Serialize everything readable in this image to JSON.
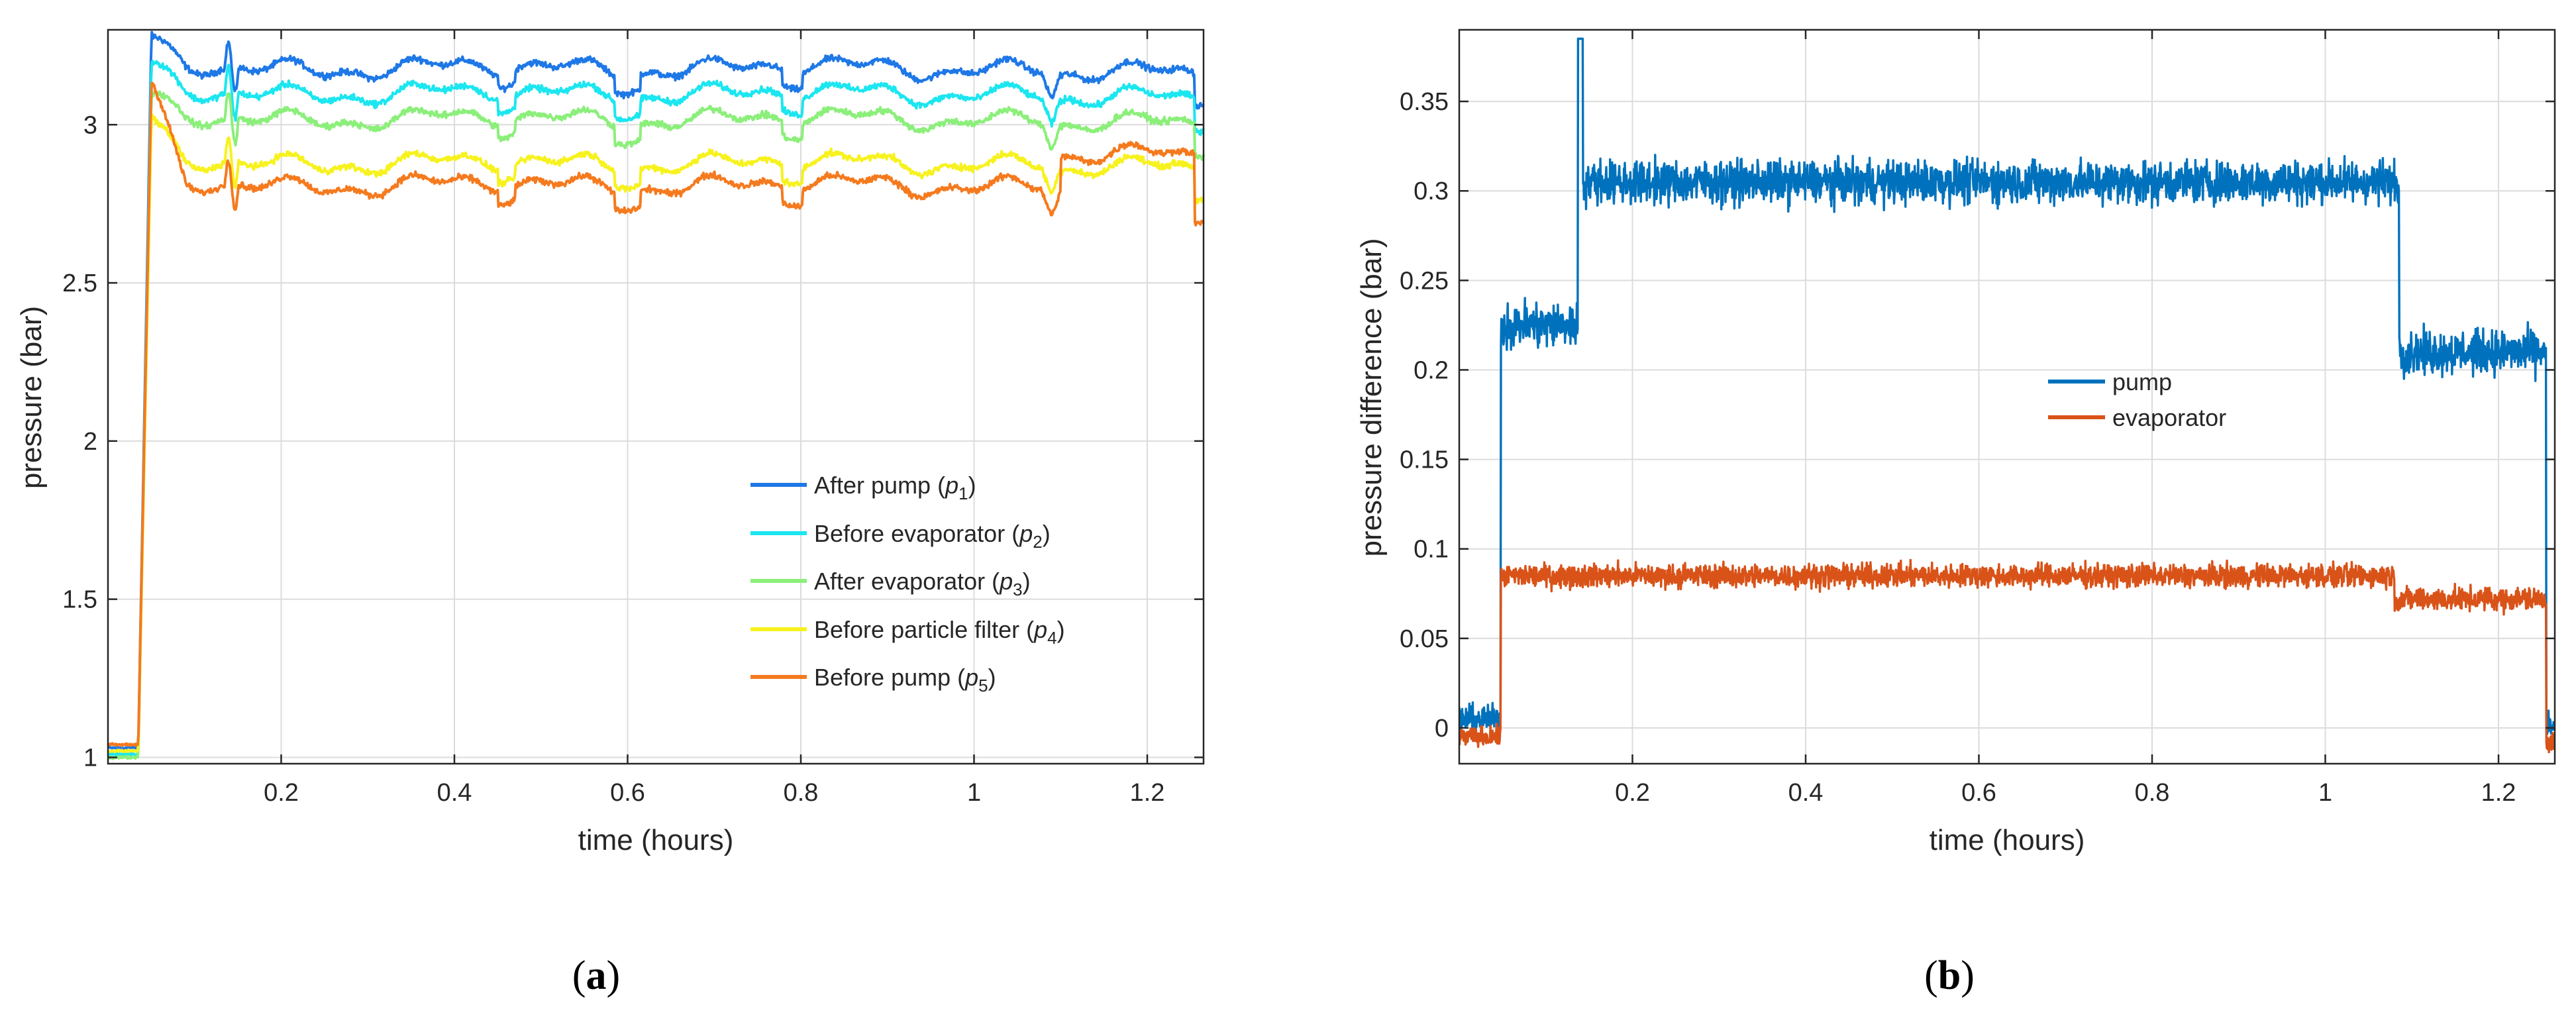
{
  "figure_labels": {
    "a_open": "(",
    "a_letter": "a",
    "a_close": ")",
    "b_open": "(",
    "b_letter": "b",
    "b_close": ")"
  },
  "chart_data": [
    {
      "id": "a",
      "type": "line",
      "title": "",
      "xlabel": "time (hours)",
      "ylabel": "pressure (bar)",
      "xlim": [
        0,
        1.265
      ],
      "ylim": [
        0.98,
        3.3
      ],
      "xticks": [
        0.2,
        0.4,
        0.6,
        0.8,
        1,
        1.2
      ],
      "xtick_labels": [
        "0.2",
        "0.4",
        "0.6",
        "0.8",
        "1",
        "1.2"
      ],
      "yticks": [
        1,
        1.5,
        2,
        2.5,
        3
      ],
      "ytick_labels": [
        "1",
        "1.5",
        "2",
        "2.5",
        "3"
      ],
      "grid": true,
      "legend_position": "lower-right",
      "series": [
        {
          "name": "After pump",
          "sym": "p",
          "sub": "1",
          "color": "#1E78E6",
          "before": 1.03,
          "steady": 3.18,
          "ramp_peak": 3.26,
          "noise": 0.015
        },
        {
          "name": "Before evaporator",
          "sym": "p",
          "sub": "2",
          "color": "#1CE6F0",
          "before": 1.01,
          "steady": 3.1,
          "ramp_peak": 3.18,
          "noise": 0.015
        },
        {
          "name": "After evaporator",
          "sym": "p",
          "sub": "3",
          "color": "#8BEF7A",
          "before": 1.0,
          "steady": 3.02,
          "ramp_peak": 3.08,
          "noise": 0.015
        },
        {
          "name": "Before particle filter",
          "sym": "p",
          "sub": "4",
          "color": "#F7F21E",
          "before": 1.02,
          "steady": 2.88,
          "ramp_peak": 3.0,
          "noise": 0.015
        },
        {
          "name": "Before pump",
          "sym": "p",
          "sub": "5",
          "color": "#F57A1E",
          "before": 1.04,
          "steady": 2.81,
          "ramp_peak": 3.12,
          "noise": 0.015
        }
      ],
      "event_times": {
        "start": 0.035,
        "end": 1.255
      }
    },
    {
      "id": "b",
      "type": "line",
      "title": "",
      "xlabel": "time (hours)",
      "ylabel": "pressure difference (bar)",
      "xlim": [
        0,
        1.265
      ],
      "ylim": [
        -0.02,
        0.39
      ],
      "xticks": [
        0.2,
        0.4,
        0.6,
        0.8,
        1,
        1.2
      ],
      "xtick_labels": [
        "0.2",
        "0.4",
        "0.6",
        "0.8",
        "1",
        "1.2"
      ],
      "yticks": [
        0,
        0.05,
        0.1,
        0.15,
        0.2,
        0.25,
        0.3,
        0.35
      ],
      "ytick_labels": [
        "0",
        "0.05",
        "0.1",
        "0.15",
        "0.2",
        "0.25",
        "0.3",
        "0.35"
      ],
      "grid": true,
      "legend_position": "center-right",
      "series": [
        {
          "name": "pump",
          "color": "#0072BD",
          "segments": [
            {
              "from": 0,
              "to": 0.048,
              "level": 0.005,
              "noise": 0.007
            },
            {
              "from": 0.048,
              "to": 0.14,
              "level": 0.225,
              "noise": 0.012
            },
            {
              "from": 0.14,
              "to": 1.085,
              "level": 0.305,
              "noise": 0.011
            },
            {
              "from": 1.085,
              "to": 1.255,
              "level": 0.21,
              "noise": 0.011
            },
            {
              "from": 1.255,
              "to": 1.265,
              "level": 0.0,
              "noise": 0.007
            }
          ],
          "spike": {
            "x": 0.14,
            "y": 0.385
          }
        },
        {
          "name": "evaporator",
          "color": "#D95319",
          "segments": [
            {
              "from": 0,
              "to": 0.048,
              "level": -0.005,
              "noise": 0.005
            },
            {
              "from": 0.048,
              "to": 1.08,
              "level": 0.085,
              "noise": 0.006
            },
            {
              "from": 1.08,
              "to": 1.255,
              "level": 0.072,
              "noise": 0.006
            },
            {
              "from": 1.255,
              "to": 1.265,
              "level": -0.008,
              "noise": 0.005
            }
          ]
        }
      ]
    }
  ]
}
